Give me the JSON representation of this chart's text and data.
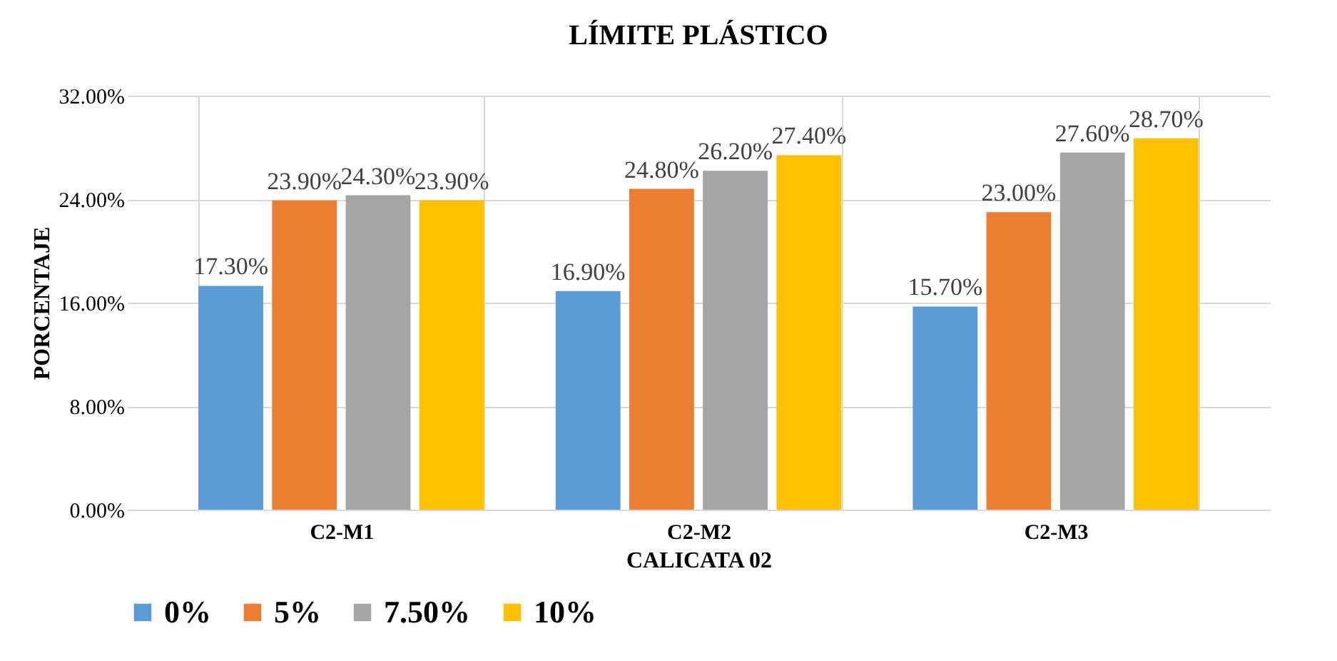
{
  "chart_data": {
    "type": "bar",
    "title": "LÍMITE PLÁSTICO",
    "xlabel": "CALICATA 02",
    "ylabel": "PORCENTAJE",
    "categories": [
      "C2-M1",
      "C2-M2",
      "C2-M3"
    ],
    "series": [
      {
        "name": "0%",
        "color": "#5b9bd5",
        "values": [
          17.3,
          16.9,
          15.7
        ],
        "value_labels": [
          "17.30%",
          "16.90%",
          "15.70%"
        ]
      },
      {
        "name": "5%",
        "color": "#ed7d31",
        "values": [
          23.9,
          24.8,
          23.0
        ],
        "value_labels": [
          "23.90%",
          "24.80%",
          "23.00%"
        ]
      },
      {
        "name": "7.50%",
        "color": "#a5a5a5",
        "values": [
          24.3,
          26.2,
          27.6
        ],
        "value_labels": [
          "24.30%",
          "26.20%",
          "27.60%"
        ]
      },
      {
        "name": "10%",
        "color": "#ffc000",
        "values": [
          23.9,
          27.4,
          28.7
        ],
        "value_labels": [
          "23.90%",
          "27.40%",
          "28.70%"
        ]
      }
    ],
    "ylim": [
      0,
      32
    ],
    "yticks": [
      {
        "value": 0,
        "label": "0.00%"
      },
      {
        "value": 8,
        "label": "8.00%"
      },
      {
        "value": 16,
        "label": "16.00%"
      },
      {
        "value": 24,
        "label": "24.00%"
      },
      {
        "value": 32,
        "label": "32.00%"
      }
    ],
    "grid": true,
    "legend": "bottom"
  }
}
